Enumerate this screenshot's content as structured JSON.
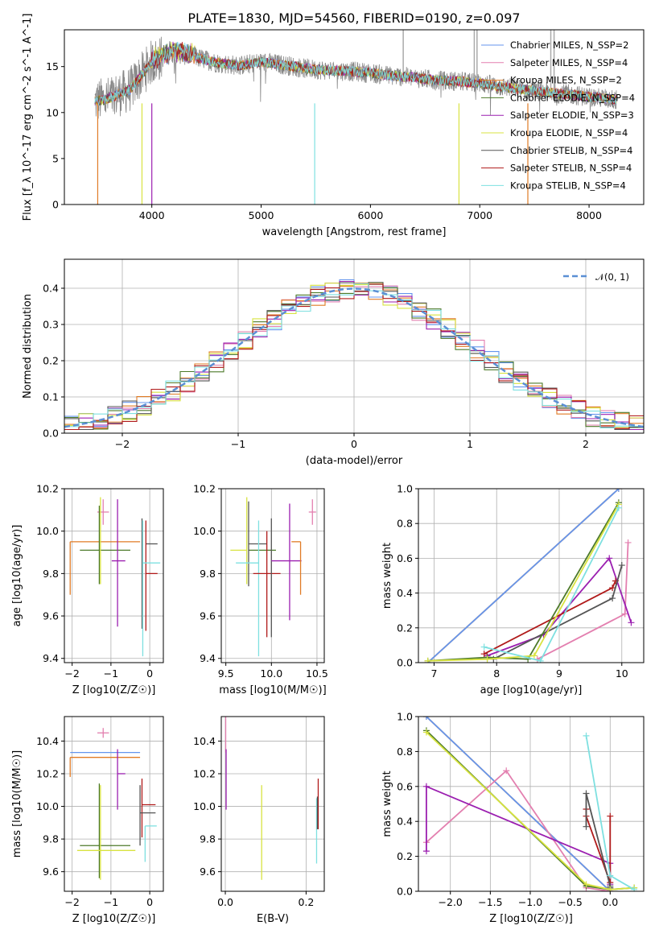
{
  "chart_data": [
    {
      "type": "line",
      "title": "PLATE=1830, MJD=54560, FIBERID=0190, z=0.097",
      "xlabel": "wavelength [Angstrom, rest frame]",
      "ylabel": "Flux [f_λ 10^-17 erg cm^-2 s^-1 A^-1]",
      "xlim": [
        3200,
        8500
      ],
      "ylim": [
        0,
        19
      ],
      "xticks": [
        "4000",
        "5000",
        "6000",
        "7000",
        "8000"
      ],
      "yticks": [
        "0",
        "5",
        "10",
        "15"
      ],
      "legend_position": "upper-right",
      "series": [
        {
          "name": "Chabrier MILES, N_SSP=2",
          "color": "#6495ed"
        },
        {
          "name": "Salpeter MILES, N_SSP=4",
          "color": "#e37faf"
        },
        {
          "name": "Kroupa MILES, N_SSP=2",
          "color": "#e07b25"
        },
        {
          "name": "Chabrier ELODIE, N_SSP=4",
          "color": "#4d7a2a"
        },
        {
          "name": "Salpeter ELODIE, N_SSP=3",
          "color": "#9b1fb0"
        },
        {
          "name": "Kroupa ELODIE, N_SSP=4",
          "color": "#d8e340"
        },
        {
          "name": "Chabrier STELIB, N_SSP=4",
          "color": "#555555"
        },
        {
          "name": "Salpeter STELIB, N_SSP=4",
          "color": "#b01a1a"
        },
        {
          "name": "Kroupa STELIB, N_SSP=4",
          "color": "#7ee0e0"
        }
      ],
      "data_series": {
        "name": "",
        "color": "#888888"
      },
      "continuum": {
        "x": [
          3480,
          3600,
          3800,
          4000,
          4200,
          4400,
          4600,
          4800,
          5000,
          5200,
          5400,
          5600,
          5800,
          6000,
          6200,
          6400,
          6600,
          6800,
          7000,
          7200,
          7400,
          7600,
          7800,
          8000,
          8250
        ],
        "y": [
          11.2,
          11.5,
          12.5,
          15.5,
          16.5,
          16.0,
          15.4,
          15.1,
          15.5,
          15.2,
          14.8,
          14.6,
          14.5,
          14.3,
          14.0,
          13.8,
          13.5,
          13.4,
          13.2,
          12.8,
          12.5,
          12.2,
          12.0,
          11.7,
          11.4
        ]
      }
    },
    {
      "type": "step",
      "xlabel": "(data-model)/error",
      "ylabel": "Normed distribution",
      "xlim": [
        -2.5,
        2.5
      ],
      "ylim": [
        0,
        0.48
      ],
      "xticks": [
        "−2",
        "−1",
        "0",
        "1",
        "2"
      ],
      "yticks": [
        "0.0",
        "0.1",
        "0.2",
        "0.3",
        "0.4"
      ],
      "legend_position": "upper-right",
      "reference": {
        "name": "𝒩(0, 1)",
        "color": "#5b8fd4"
      },
      "bin_width": 0.125
    },
    {
      "type": "scatter",
      "xlabel": "Z [log10(Z/Z☉)]",
      "ylabel": "age [log10(age/yr)]",
      "xlim": [
        -2.2,
        0.35
      ],
      "ylim": [
        9.38,
        10.2
      ],
      "xticks": [
        "−2",
        "−1",
        "0"
      ],
      "yticks": [
        "9.4",
        "9.6",
        "9.8",
        "10.0",
        "10.2"
      ],
      "points": [
        {
          "x": -2.05,
          "y": 9.95,
          "xerr": [
            0,
            1.8
          ],
          "yerr": [
            0.25,
            0
          ],
          "color": "#e07b25"
        },
        {
          "x": -1.2,
          "y": 10.09,
          "xerr": [
            0.15,
            0.15
          ],
          "yerr": [
            0.06,
            0.06
          ],
          "color": "#e37faf"
        },
        {
          "x": -1.3,
          "y": 9.91,
          "xerr": [
            0.5,
            0.8
          ],
          "yerr": [
            0.16,
            0.21
          ],
          "color": "#4d7a2a"
        },
        {
          "x": -1.27,
          "y": 9.91,
          "xerr": [
            0.0,
            0.0
          ],
          "yerr": [
            0.16,
            0.25
          ],
          "color": "#d8e340"
        },
        {
          "x": -0.83,
          "y": 9.86,
          "xerr": [
            0.15,
            0.2
          ],
          "yerr": [
            0.31,
            0.29
          ],
          "color": "#9b1fb0"
        },
        {
          "x": -0.2,
          "y": 9.94,
          "xerr": [
            0.0,
            0.0
          ],
          "yerr": [
            0.4,
            0.12
          ],
          "color": "#555555"
        },
        {
          "x": -0.1,
          "y": 9.94,
          "xerr": [
            0.0,
            0.3
          ],
          "yerr": [
            0.0,
            0.0
          ],
          "color": "#555555"
        },
        {
          "x": -0.1,
          "y": 9.8,
          "xerr": [
            0.0,
            0.3
          ],
          "yerr": [
            0.27,
            0.25
          ],
          "color": "#b01a1a"
        },
        {
          "x": -0.18,
          "y": 9.85,
          "xerr": [
            0.0,
            0.45
          ],
          "yerr": [
            0.44,
            0.2
          ],
          "color": "#7ee0e0"
        }
      ]
    },
    {
      "type": "scatter",
      "xlabel": "mass [log10(M/M☉)]",
      "ylabel": "",
      "xlim": [
        9.45,
        10.58
      ],
      "ylim": [
        9.38,
        10.2
      ],
      "xticks": [
        "9.5",
        "10.0",
        "10.5"
      ],
      "yticks": [
        "9.4",
        "9.6",
        "9.8",
        "10.0",
        "10.2"
      ],
      "points": [
        {
          "x": 9.73,
          "y": 9.91,
          "xerr": [
            0.18,
            0.0
          ],
          "yerr": [
            0.16,
            0.25
          ],
          "color": "#d8e340"
        },
        {
          "x": 9.75,
          "y": 9.91,
          "xerr": [
            0.0,
            0.3
          ],
          "yerr": [
            0.0,
            0.0
          ],
          "color": "#4d7a2a"
        },
        {
          "x": 9.75,
          "y": 9.94,
          "xerr": [
            0.0,
            0.2
          ],
          "yerr": [
            0.2,
            0.2
          ],
          "color": "#555555"
        },
        {
          "x": 9.86,
          "y": 9.85,
          "xerr": [
            0.25,
            0.0
          ],
          "yerr": [
            0.44,
            0.2
          ],
          "color": "#7ee0e0"
        },
        {
          "x": 9.95,
          "y": 9.8,
          "xerr": [
            0.15,
            0.15
          ],
          "yerr": [
            0.3,
            0.2
          ],
          "color": "#b01a1a"
        },
        {
          "x": 10.0,
          "y": 9.94,
          "xerr": [
            0.0,
            0.0
          ],
          "yerr": [
            0.44,
            0.12
          ],
          "color": "#555555"
        },
        {
          "x": 10.2,
          "y": 9.86,
          "xerr": [
            0.2,
            0.13
          ],
          "yerr": [
            0.28,
            0.27
          ],
          "color": "#9b1fb0"
        },
        {
          "x": 10.32,
          "y": 9.95,
          "xerr": [
            0.1,
            0.0
          ],
          "yerr": [
            0.25,
            0.0
          ],
          "color": "#e07b25"
        },
        {
          "x": 10.45,
          "y": 10.09,
          "xerr": [
            0.04,
            0.04
          ],
          "yerr": [
            0.06,
            0.06
          ],
          "color": "#e37faf"
        }
      ]
    },
    {
      "type": "line",
      "xlabel": "age [log10(age/yr)]",
      "ylabel": "mass weight",
      "xlim": [
        6.75,
        10.35
      ],
      "ylim": [
        0,
        1.0
      ],
      "xticks": [
        "7",
        "8",
        "9",
        "10"
      ],
      "yticks": [
        "0.0",
        "0.2",
        "0.4",
        "0.6",
        "0.8",
        "1.0"
      ],
      "series": [
        {
          "name": "",
          "color": "#e07b25",
          "x": [
            6.9,
            9.95
          ],
          "y": [
            0.0,
            1.0
          ]
        },
        {
          "name": "",
          "color": "#6495ed",
          "x": [
            6.9,
            9.95
          ],
          "y": [
            0.0,
            1.0
          ]
        },
        {
          "name": "",
          "color": "#e37faf",
          "x": [
            8.65,
            10.05,
            10.1
          ],
          "y": [
            0.02,
            0.28,
            0.69
          ]
        },
        {
          "name": "",
          "color": "#9b1fb0",
          "x": [
            7.85,
            8.75,
            9.8,
            10.15
          ],
          "y": [
            0.04,
            0.16,
            0.6,
            0.23
          ]
        },
        {
          "name": "",
          "color": "#b01a1a",
          "x": [
            7.8,
            9.85,
            9.9
          ],
          "y": [
            0.05,
            0.43,
            0.47
          ]
        },
        {
          "name": "",
          "color": "#555555",
          "x": [
            7.85,
            7.95,
            9.85,
            10.0
          ],
          "y": [
            0.03,
            0.02,
            0.37,
            0.56
          ]
        },
        {
          "name": "",
          "color": "#4d7a2a",
          "x": [
            6.9,
            7.85,
            8.5,
            9.95
          ],
          "y": [
            0.01,
            0.03,
            0.02,
            0.92
          ]
        },
        {
          "name": "",
          "color": "#d8e340",
          "x": [
            6.9,
            7.85,
            8.6,
            9.95
          ],
          "y": [
            0.01,
            0.02,
            0.04,
            0.91
          ]
        },
        {
          "name": "",
          "color": "#7ee0e0",
          "x": [
            7.8,
            8.7,
            9.95
          ],
          "y": [
            0.09,
            0.01,
            0.89
          ]
        }
      ]
    },
    {
      "type": "scatter",
      "xlabel": "Z [log10(Z/Z☉)]",
      "ylabel": "mass [log10(M/M☉)]",
      "xlim": [
        -2.2,
        0.35
      ],
      "ylim": [
        9.48,
        10.55
      ],
      "xticks": [
        "−2",
        "−1",
        "0"
      ],
      "yticks": [
        "9.6",
        "9.8",
        "10.0",
        "10.2",
        "10.4"
      ],
      "points": [
        {
          "x": -2.05,
          "y": 10.33,
          "xerr": [
            0,
            1.8
          ],
          "yerr": [
            0.0,
            0.0
          ],
          "color": "#6495ed"
        },
        {
          "x": -2.05,
          "y": 10.3,
          "xerr": [
            0,
            1.8
          ],
          "yerr": [
            0.12,
            0.0
          ],
          "color": "#e07b25"
        },
        {
          "x": -1.2,
          "y": 10.45,
          "xerr": [
            0.15,
            0.15
          ],
          "yerr": [
            0.03,
            0.03
          ],
          "color": "#e37faf"
        },
        {
          "x": -1.3,
          "y": 9.76,
          "xerr": [
            0.5,
            0.8
          ],
          "yerr": [
            0.2,
            0.38
          ],
          "color": "#4d7a2a"
        },
        {
          "x": -1.27,
          "y": 9.73,
          "xerr": [
            0.6,
            0.9
          ],
          "yerr": [
            0.18,
            0.4
          ],
          "color": "#d8e340"
        },
        {
          "x": -0.83,
          "y": 10.2,
          "xerr": [
            0.0,
            0.2
          ],
          "yerr": [
            0.22,
            0.15
          ],
          "color": "#9b1fb0"
        },
        {
          "x": -0.2,
          "y": 10.01,
          "xerr": [
            0.0,
            0.35
          ],
          "yerr": [
            0.2,
            0.16
          ],
          "color": "#b01a1a"
        },
        {
          "x": -0.25,
          "y": 9.96,
          "xerr": [
            0.0,
            0.4
          ],
          "yerr": [
            0.2,
            0.17
          ],
          "color": "#555555"
        },
        {
          "x": -0.12,
          "y": 9.88,
          "xerr": [
            0.0,
            0.3
          ],
          "yerr": [
            0.22,
            0.0
          ],
          "color": "#7ee0e0"
        }
      ]
    },
    {
      "type": "scatter",
      "xlabel": "E(B-V)",
      "ylabel": "",
      "xlim": [
        -0.01,
        0.245
      ],
      "ylim": [
        9.48,
        10.55
      ],
      "xticks": [
        "0.0",
        "0.2"
      ],
      "yticks": [
        "9.6",
        "9.8",
        "10.0",
        "10.2",
        "10.4"
      ],
      "points": [
        {
          "x": 0.001,
          "y": 10.33,
          "xerr": [
            0,
            0
          ],
          "yerr": [
            0.0,
            0.22
          ],
          "color": "#e37faf"
        },
        {
          "x": 0.002,
          "y": 10.15,
          "xerr": [
            0,
            0
          ],
          "yerr": [
            0.17,
            0.2
          ],
          "color": "#9b1fb0"
        },
        {
          "x": 0.09,
          "y": 9.8,
          "xerr": [
            0,
            0
          ],
          "yerr": [
            0.25,
            0.33
          ],
          "color": "#d8e340"
        },
        {
          "x": 0.23,
          "y": 10.0,
          "xerr": [
            0,
            0
          ],
          "yerr": [
            0.14,
            0.17
          ],
          "color": "#b01a1a"
        },
        {
          "x": 0.226,
          "y": 9.85,
          "xerr": [
            0,
            0
          ],
          "yerr": [
            0.2,
            0.2
          ],
          "color": "#7ee0e0"
        },
        {
          "x": 0.228,
          "y": 9.96,
          "xerr": [
            0,
            0
          ],
          "yerr": [
            0.1,
            0.1
          ],
          "color": "#555555"
        }
      ]
    },
    {
      "type": "line",
      "xlabel": "Z [log10(Z/Z☉)]",
      "ylabel": "mass weight",
      "xlim": [
        -2.4,
        0.42
      ],
      "ylim": [
        0,
        1.0
      ],
      "xticks": [
        "−2.0",
        "−1.5",
        "−1.0",
        "−0.5",
        "0.0"
      ],
      "yticks": [
        "0.0",
        "0.2",
        "0.4",
        "0.6",
        "0.8",
        "1.0"
      ],
      "series": [
        {
          "name": "",
          "color": "#e07b25",
          "x": [
            -2.3,
            0.0
          ],
          "y": [
            1.0,
            0.0
          ]
        },
        {
          "name": "",
          "color": "#6495ed",
          "x": [
            -2.3,
            0.0
          ],
          "y": [
            1.0,
            0.0
          ]
        },
        {
          "name": "",
          "color": "#e37faf",
          "x": [
            -2.3,
            -1.3,
            -0.3,
            0.0
          ],
          "y": [
            0.28,
            0.69,
            0.02,
            0.0
          ]
        },
        {
          "name": "",
          "color": "#9b1fb0",
          "x": [
            -2.3,
            -2.3,
            0.0,
            0.0
          ],
          "y": [
            0.23,
            0.6,
            0.16,
            0.04
          ]
        },
        {
          "name": "",
          "color": "#b01a1a",
          "x": [
            -0.3,
            -0.3,
            0.0,
            0.0
          ],
          "y": [
            0.47,
            0.43,
            0.05,
            0.43
          ]
        },
        {
          "name": "",
          "color": "#555555",
          "x": [
            -0.3,
            -0.3,
            0.0,
            0.0
          ],
          "y": [
            0.37,
            0.56,
            0.03,
            0.02
          ]
        },
        {
          "name": "",
          "color": "#4d7a2a",
          "x": [
            -2.3,
            -0.3,
            0.0,
            0.3
          ],
          "y": [
            0.92,
            0.03,
            0.01,
            0.02
          ]
        },
        {
          "name": "",
          "color": "#d8e340",
          "x": [
            -2.3,
            -0.3,
            0.0,
            0.3
          ],
          "y": [
            0.91,
            0.04,
            0.01,
            0.02
          ]
        },
        {
          "name": "",
          "color": "#7ee0e0",
          "x": [
            -0.3,
            0.0,
            0.3
          ],
          "y": [
            0.89,
            0.09,
            0.01
          ]
        }
      ]
    }
  ]
}
